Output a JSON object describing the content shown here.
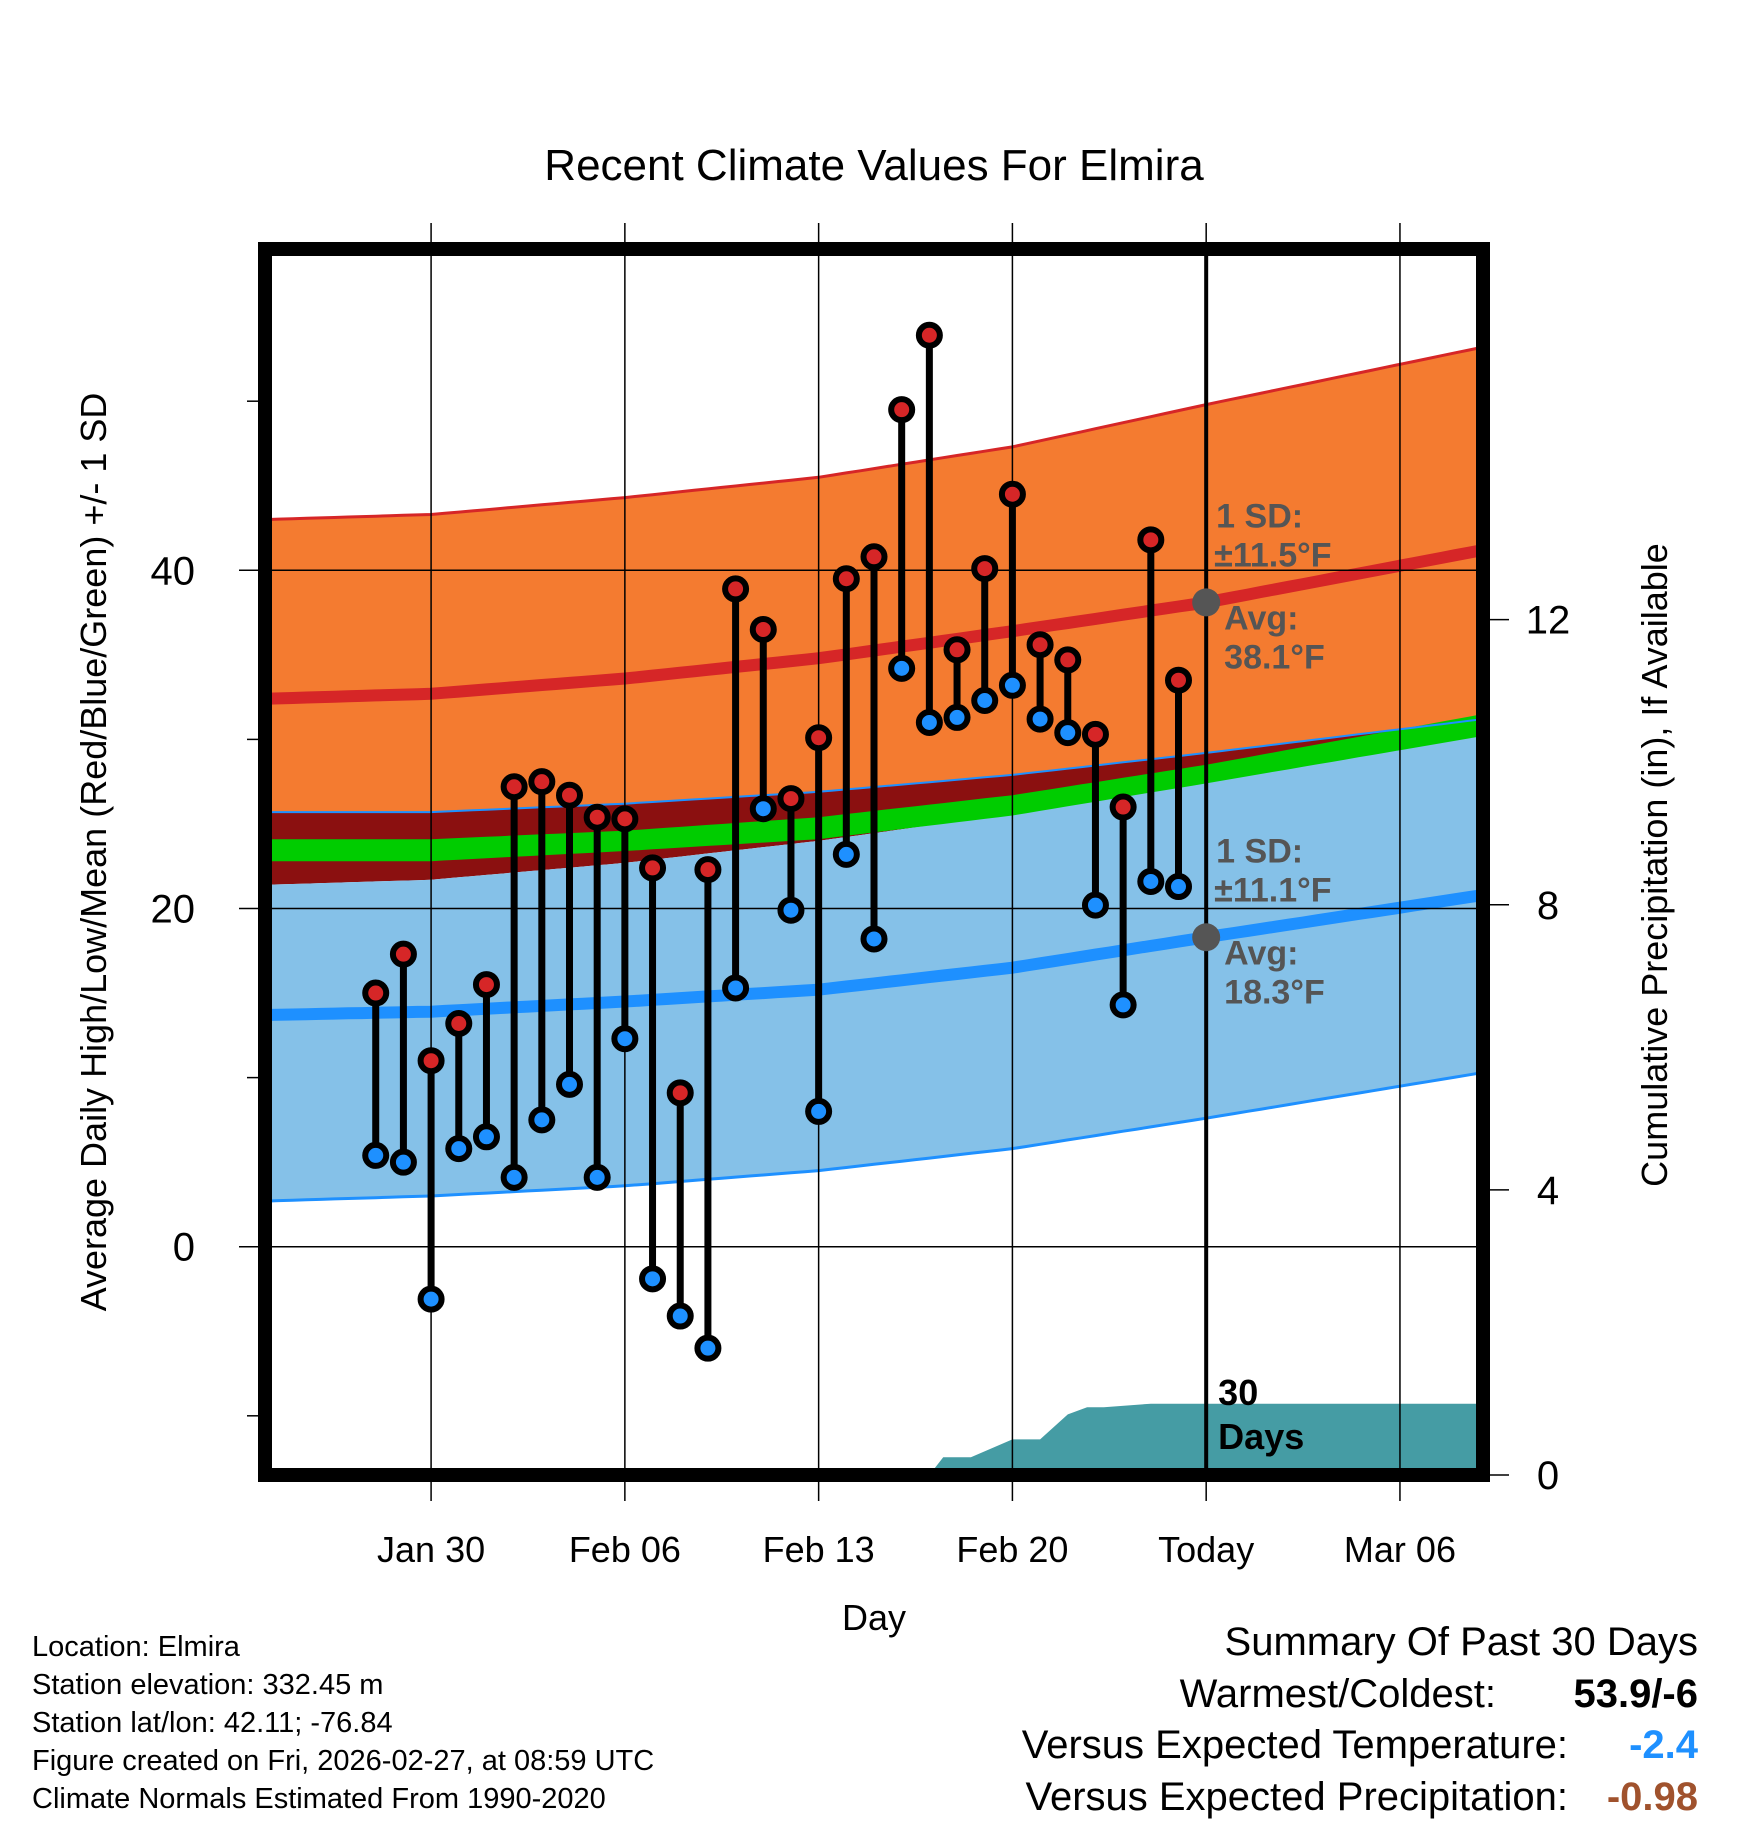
{
  "chart_data": {
    "type": "line",
    "title": "Recent Climate Values For Elmira",
    "xlabel": "Day",
    "ylabel_left": "Average Daily High/Low/Mean (Red/Blue/Green) +/- 1 SD",
    "ylabel_right": "Cumulative Precipitation (in), If Available",
    "x_range_days": [
      -34,
      10
    ],
    "x_ticks": [
      {
        "day": -28,
        "label": "Jan 30"
      },
      {
        "day": -21,
        "label": "Feb 06"
      },
      {
        "day": -14,
        "label": "Feb 13"
      },
      {
        "day": -7,
        "label": "Feb 20"
      },
      {
        "day": 0,
        "label": "Today"
      },
      {
        "day": 7,
        "label": "Mar 06"
      }
    ],
    "y_left_range": [
      -13.5,
      59
    ],
    "y_left_ticks": [
      0,
      20,
      40
    ],
    "y_left_minor_ticks": [
      -10,
      10,
      30,
      50
    ],
    "y_right_ticks": [
      0,
      4,
      8,
      12
    ],
    "y_right_range": [
      0,
      17.2
    ],
    "normal_high": {
      "mean": [
        [
          -34,
          32.4
        ],
        [
          -28,
          32.7
        ],
        [
          -21,
          33.6
        ],
        [
          -14,
          34.8
        ],
        [
          -7,
          36.4
        ],
        [
          0,
          38.1
        ],
        [
          10,
          41.2
        ]
      ],
      "upper": [
        [
          -34,
          43.0
        ],
        [
          -28,
          43.3
        ],
        [
          -21,
          44.3
        ],
        [
          -14,
          45.5
        ],
        [
          -7,
          47.3
        ],
        [
          0,
          49.8
        ],
        [
          10,
          53.2
        ]
      ],
      "lower": [
        [
          -34,
          25.7
        ],
        [
          -28,
          25.7
        ],
        [
          -21,
          26.2
        ],
        [
          -14,
          26.9
        ],
        [
          -7,
          27.9
        ],
        [
          0,
          29.2
        ],
        [
          10,
          31.2
        ]
      ]
    },
    "normal_low": {
      "mean": [
        [
          -34,
          13.7
        ],
        [
          -28,
          13.9
        ],
        [
          -21,
          14.5
        ],
        [
          -14,
          15.2
        ],
        [
          -7,
          16.5
        ],
        [
          0,
          18.3
        ],
        [
          10,
          20.8
        ]
      ],
      "upper": [
        [
          -34,
          21.4
        ],
        [
          -28,
          21.7
        ],
        [
          -21,
          22.7
        ],
        [
          -14,
          24.0
        ],
        [
          -7,
          25.6
        ],
        [
          0,
          27.6
        ],
        [
          10,
          30.5
        ]
      ],
      "lower": [
        [
          -34,
          2.7
        ],
        [
          -28,
          3.0
        ],
        [
          -21,
          3.6
        ],
        [
          -14,
          4.5
        ],
        [
          -7,
          5.8
        ],
        [
          0,
          7.6
        ],
        [
          10,
          10.3
        ]
      ]
    },
    "normal_mean_band": {
      "upper": [
        [
          -34,
          24.1
        ],
        [
          -28,
          24.1
        ],
        [
          -21,
          24.6
        ],
        [
          -14,
          25.4
        ],
        [
          -7,
          26.7
        ],
        [
          0,
          28.5
        ],
        [
          10,
          31.5
        ]
      ],
      "lower": [
        [
          -34,
          22.8
        ],
        [
          -28,
          22.8
        ],
        [
          -21,
          23.4
        ],
        [
          -14,
          24.1
        ],
        [
          -7,
          25.5
        ],
        [
          0,
          27.4
        ],
        [
          10,
          30.2
        ]
      ]
    },
    "daily": [
      {
        "day": -30,
        "high": 15.0,
        "low": 5.4
      },
      {
        "day": -29,
        "high": 17.3,
        "low": 5.0
      },
      {
        "day": -28,
        "high": 11.0,
        "low": -3.1
      },
      {
        "day": -27,
        "high": 13.2,
        "low": 5.8
      },
      {
        "day": -26,
        "high": 15.5,
        "low": 6.5
      },
      {
        "day": -25,
        "high": 27.2,
        "low": 4.1
      },
      {
        "day": -24,
        "high": 27.5,
        "low": 7.5
      },
      {
        "day": -23,
        "high": 26.7,
        "low": 9.6
      },
      {
        "day": -22,
        "high": 25.4,
        "low": 4.1
      },
      {
        "day": -21,
        "high": 25.3,
        "low": 12.3
      },
      {
        "day": -20,
        "high": 22.4,
        "low": -1.9
      },
      {
        "day": -19,
        "high": 9.1,
        "low": -4.1
      },
      {
        "day": -18,
        "high": 22.3,
        "low": -6.0
      },
      {
        "day": -17,
        "high": 38.9,
        "low": 15.3
      },
      {
        "day": -16,
        "high": 36.5,
        "low": 25.9
      },
      {
        "day": -15,
        "high": 26.5,
        "low": 19.9
      },
      {
        "day": -14,
        "high": 30.1,
        "low": 8.0
      },
      {
        "day": -13,
        "high": 39.5,
        "low": 23.2
      },
      {
        "day": -12,
        "high": 40.8,
        "low": 18.2
      },
      {
        "day": -11,
        "high": 49.5,
        "low": 34.2
      },
      {
        "day": -10,
        "high": 53.9,
        "low": 31.0
      },
      {
        "day": -9,
        "high": 35.3,
        "low": 31.3
      },
      {
        "day": -8,
        "high": 40.1,
        "low": 32.3
      },
      {
        "day": -7,
        "high": 44.5,
        "low": 33.2
      },
      {
        "day": -6,
        "high": 35.6,
        "low": 31.2
      },
      {
        "day": -5,
        "high": 34.7,
        "low": 30.4
      },
      {
        "day": -4,
        "high": 30.3,
        "low": 20.2
      },
      {
        "day": -3,
        "high": 26.0,
        "low": 14.3
      },
      {
        "day": -2,
        "high": 41.8,
        "low": 21.6
      },
      {
        "day": -1,
        "high": 33.5,
        "low": 21.3
      }
    ],
    "precip_cumulative": [
      [
        -10,
        0.0
      ],
      [
        -9.5,
        0.25
      ],
      [
        -8.5,
        0.25
      ],
      [
        -7,
        0.5
      ],
      [
        -6,
        0.5
      ],
      [
        -5,
        0.85
      ],
      [
        -4.3,
        0.95
      ],
      [
        -3.7,
        0.95
      ],
      [
        -2,
        1.0
      ],
      [
        10,
        1.0
      ]
    ],
    "annotations": {
      "high_sd": "1 SD:",
      "high_sd_value": "±11.5°F",
      "high_avg": "Avg:",
      "high_avg_value": "38.1°F",
      "low_sd": "1 SD:",
      "low_sd_value": "±11.1°F",
      "low_avg": "Avg:",
      "low_avg_value": "18.3°F",
      "days_num": "30",
      "days_word": "Days"
    },
    "colors": {
      "high_band": "#f47b30",
      "high_line": "#d62627",
      "low_band": "#85c1e8",
      "low_line": "#1e90ff",
      "mean_band": "#00cc00",
      "overlap": "#8b1010",
      "precip": "#459ca4",
      "annotation": "#555555",
      "high_marker": "#d62627",
      "low_marker": "#1e90ff"
    }
  },
  "location": {
    "location": "Location: Elmira",
    "elevation": "Station elevation: 332.45 m",
    "latlon": "Station lat/lon: 42.11; -76.84",
    "created": "Figure created on Fri, 2026-02-27, at 08:59 UTC",
    "normals": "Climate Normals Estimated From 1990-2020"
  },
  "summary": {
    "heading": "Summary Of Past 30 Days",
    "warmest_label": "Warmest/Coldest:",
    "warmest_value": "53.9/-6",
    "temp_label": "Versus Expected Temperature:",
    "temp_value": "-2.4",
    "temp_color": "#1e90ff",
    "precip_label": "Versus Expected Precipitation:",
    "precip_value": "-0.98",
    "precip_color": "#a0522d"
  }
}
